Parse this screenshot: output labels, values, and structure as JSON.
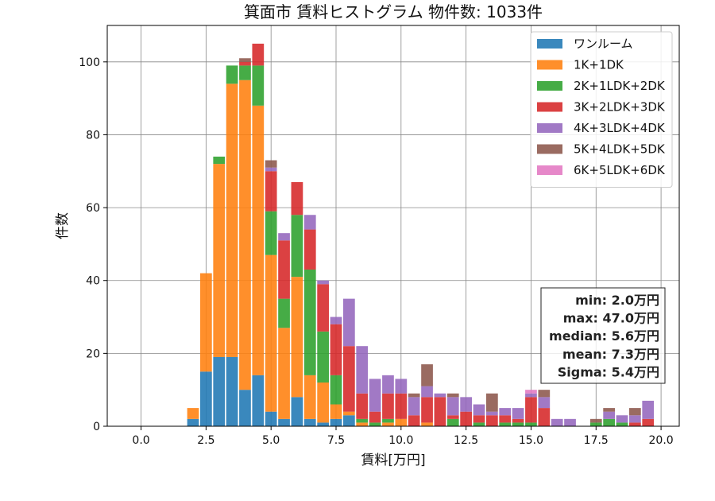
{
  "chart_data": {
    "type": "bar",
    "stacked": true,
    "title": "箕面市 賃料ヒストグラム  物件数: 1033件",
    "xlabel": "賃料[万円]",
    "ylabel": "件数",
    "xlim": [
      -1.3,
      20.7
    ],
    "ylim": [
      0,
      110
    ],
    "grid": true,
    "legend_position": "top-right",
    "bin_width": 0.5,
    "x_ticks": [
      "0.0",
      "2.5",
      "5.0",
      "7.5",
      "10.0",
      "12.5",
      "15.0",
      "17.5",
      "20.0"
    ],
    "y_ticks": [
      "0",
      "20",
      "40",
      "60",
      "80",
      "100"
    ],
    "x": [
      2.0,
      2.5,
      3.0,
      3.5,
      4.0,
      4.5,
      5.0,
      5.5,
      6.0,
      6.5,
      7.0,
      7.5,
      8.0,
      8.5,
      9.0,
      9.5,
      10.0,
      10.5,
      11.0,
      11.5,
      12.0,
      12.5,
      13.0,
      13.5,
      14.0,
      14.5,
      15.0,
      15.5,
      16.0,
      16.5,
      17.0,
      17.5,
      18.0,
      18.5,
      19.0,
      19.5
    ],
    "series": [
      {
        "name": "ワンルーム",
        "color": "#1f77b4",
        "values": [
          2,
          15,
          19,
          19,
          10,
          14,
          4,
          2,
          8,
          2,
          1,
          2,
          3,
          0,
          0,
          0,
          0,
          0,
          0,
          0,
          0,
          0,
          0,
          0,
          0,
          0,
          0,
          0,
          0,
          0,
          0,
          0,
          0,
          0,
          0,
          0
        ]
      },
      {
        "name": "1K+1DK",
        "color": "#ff7f0e",
        "values": [
          3,
          27,
          53,
          75,
          85,
          74,
          43,
          25,
          33,
          12,
          11,
          4,
          1,
          1,
          0,
          1,
          2,
          0,
          1,
          0,
          0,
          0,
          0,
          0,
          0,
          0,
          0,
          0,
          0,
          0,
          0,
          0,
          0,
          0,
          0,
          0
        ]
      },
      {
        "name": "2K+1LDK+2DK",
        "color": "#2ca02c",
        "values": [
          0,
          0,
          2,
          5,
          4,
          11,
          12,
          8,
          17,
          29,
          14,
          8,
          0,
          1,
          1,
          1,
          0,
          0,
          0,
          0,
          2,
          0,
          1,
          0,
          1,
          1,
          1,
          0,
          0,
          0,
          0,
          1,
          2,
          1,
          0,
          0
        ]
      },
      {
        "name": "3K+2LDK+3DK",
        "color": "#d62728",
        "values": [
          0,
          0,
          0,
          0,
          1,
          6,
          11,
          16,
          9,
          11,
          13,
          14,
          18,
          7,
          3,
          7,
          7,
          3,
          7,
          8,
          1,
          4,
          2,
          3,
          2,
          1,
          7,
          5,
          0,
          0,
          0,
          0,
          0,
          0,
          1,
          2
        ]
      },
      {
        "name": "4K+3LDK+4DK",
        "color": "#9467bd",
        "values": [
          0,
          0,
          0,
          0,
          0,
          0,
          1,
          2,
          0,
          4,
          1,
          2,
          13,
          13,
          9,
          5,
          4,
          5,
          3,
          1,
          5,
          4,
          3,
          1,
          2,
          3,
          1,
          3,
          2,
          2,
          0,
          0,
          2,
          2,
          2,
          5
        ]
      },
      {
        "name": "5K+4LDK+5DK",
        "color": "#8c564b",
        "values": [
          0,
          0,
          0,
          0,
          1,
          0,
          2,
          0,
          0,
          0,
          0,
          0,
          0,
          0,
          0,
          0,
          0,
          1,
          6,
          0,
          1,
          0,
          0,
          5,
          0,
          0,
          0,
          2,
          0,
          0,
          0,
          1,
          1,
          0,
          2,
          0
        ]
      },
      {
        "name": "6K+5LDK+6DK",
        "color": "#e377c2",
        "values": [
          0,
          0,
          0,
          0,
          0,
          0,
          0,
          0,
          0,
          0,
          0,
          0,
          0,
          0,
          0,
          0,
          0,
          0,
          0,
          0,
          0,
          0,
          0,
          0,
          0,
          0,
          1,
          0,
          0,
          0,
          0,
          0,
          0,
          0,
          0,
          0
        ]
      }
    ],
    "stats": [
      "min: 2.0万円",
      "max: 47.0万円",
      "median: 5.6万円",
      "mean: 7.3万円",
      "Sigma: 5.4万円"
    ]
  }
}
